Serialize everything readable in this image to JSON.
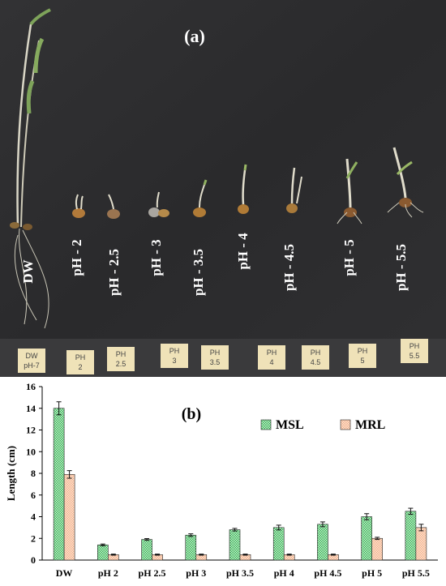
{
  "photo": {
    "panel_label": "(a)",
    "seedling_labels": [
      "DW",
      "pH - 2",
      "pH - 2.5",
      "pH - 3",
      "pH - 3.5",
      "pH - 4",
      "pH - 4.5",
      "pH - 5",
      "pH - 5.5"
    ],
    "tags": [
      {
        "line1": "DW",
        "line2": "pH-7"
      },
      {
        "line1": "PH",
        "line2": "2"
      },
      {
        "line1": "PH",
        "line2": "2.5"
      },
      {
        "line1": "PH",
        "line2": "3"
      },
      {
        "line1": "PH",
        "line2": "3.5"
      },
      {
        "line1": "PH",
        "line2": "4"
      },
      {
        "line1": "PH",
        "line2": "4.5"
      },
      {
        "line1": "PH",
        "line2": "5"
      },
      {
        "line1": "PH",
        "line2": "5.5"
      }
    ],
    "colors": {
      "background": "#2b2b2d",
      "tag": "#efe2b8",
      "leaf": "#7ea35a"
    }
  },
  "chart_data": {
    "type": "bar",
    "panel_label": "(b)",
    "categories": [
      "DW",
      "pH 2",
      "pH 2.5",
      "pH 3",
      "pH 3.5",
      "pH 4",
      "pH 4.5",
      "pH 5",
      "pH 5.5"
    ],
    "series": [
      {
        "name": "MSL",
        "values": [
          14.0,
          1.4,
          1.9,
          2.3,
          2.8,
          3.0,
          3.3,
          4.0,
          4.5
        ],
        "errors": [
          0.6,
          0.08,
          0.08,
          0.12,
          0.12,
          0.22,
          0.22,
          0.28,
          0.28
        ],
        "color": "#3cb35a"
      },
      {
        "name": "MRL",
        "values": [
          7.9,
          0.5,
          0.5,
          0.5,
          0.5,
          0.5,
          0.5,
          2.0,
          3.0
        ],
        "errors": [
          0.35,
          0.05,
          0.05,
          0.05,
          0.05,
          0.05,
          0.05,
          0.1,
          0.3
        ],
        "color": "#f2b48e"
      }
    ],
    "ylabel": "Length (cm)",
    "xlabel": "",
    "ylim": [
      0,
      16
    ],
    "yticks": [
      "0",
      "2",
      "4",
      "6",
      "8",
      "10",
      "12",
      "14",
      "16"
    ],
    "grid": false,
    "legend": "top-right"
  }
}
